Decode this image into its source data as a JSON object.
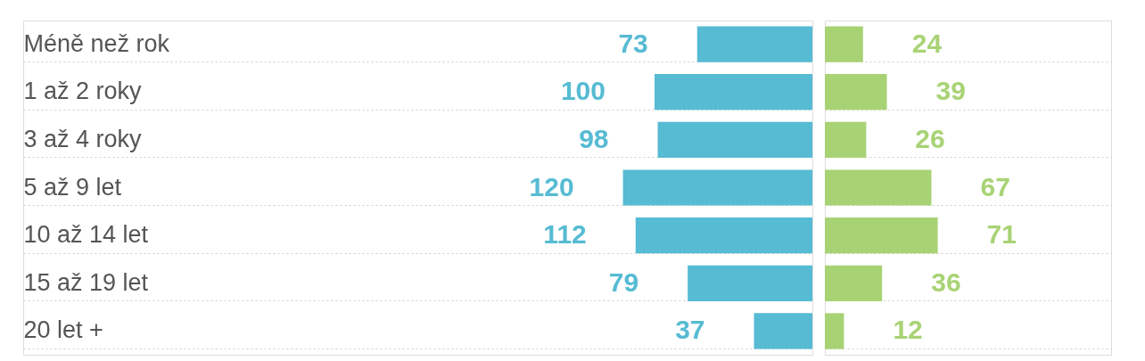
{
  "chart_data": [
    {
      "type": "bar",
      "orientation": "horizontal",
      "categories": [
        "Méně než rok",
        "1 až 2 roky",
        "3 až 4 roky",
        "5 až 9 let",
        "10 až 14 let",
        "15 až 19 let",
        "20 let +"
      ],
      "series": [
        {
          "color": "#56bbd3",
          "values": [
            73,
            100,
            98,
            120,
            112,
            79,
            37
          ]
        }
      ],
      "xlim": [
        500,
        0
      ],
      "data_labels": true,
      "tick_labels": "y",
      "grid": "y"
    },
    {
      "type": "bar",
      "orientation": "horizontal",
      "categories": [
        null,
        null,
        null,
        null,
        null,
        null,
        null
      ],
      "series": [
        {
          "color": "#a8d375",
          "values": [
            24,
            39,
            26,
            67,
            71,
            36,
            12
          ]
        }
      ],
      "xlim": [
        0,
        180
      ],
      "data_labels": true,
      "tick_labels": false,
      "grid": "y"
    }
  ]
}
